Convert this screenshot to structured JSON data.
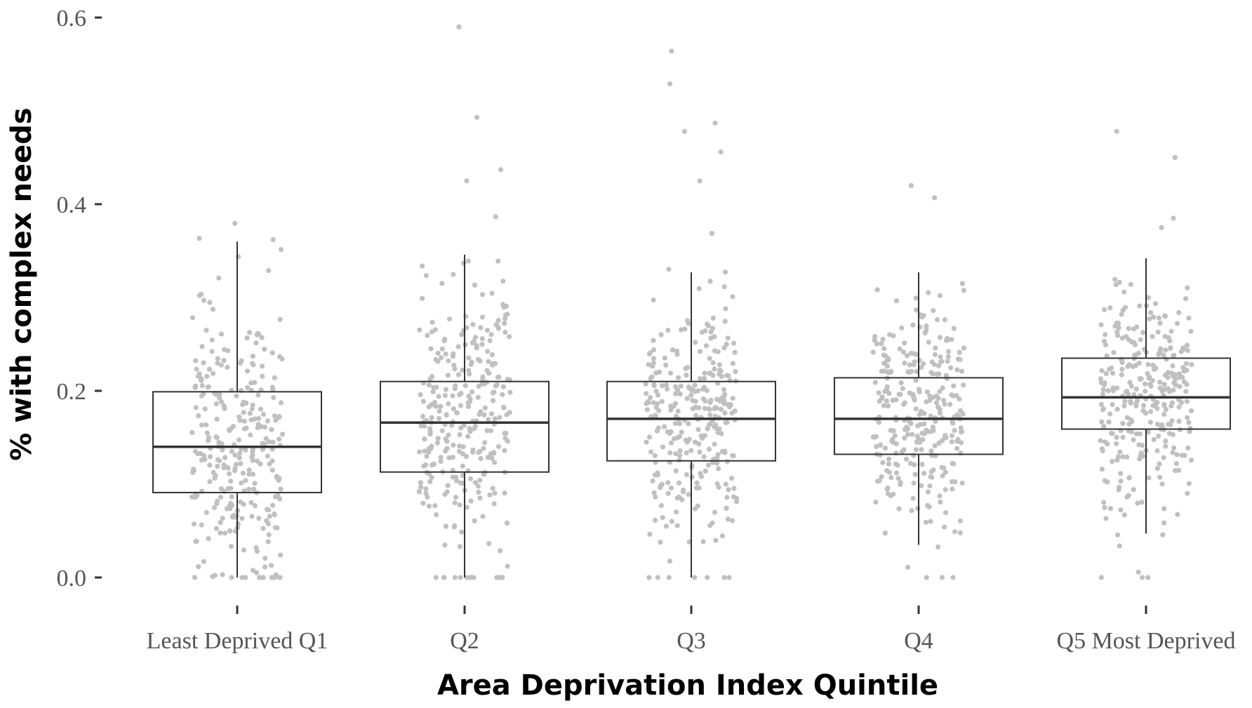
{
  "chart_data": {
    "type": "box",
    "xlabel": "Area Deprivation Index Quintile",
    "ylabel": "% with complex needs",
    "ylim": [
      -0.06,
      0.61
    ],
    "yticks": [
      "0.0",
      "0.2",
      "0.4",
      "0.6"
    ],
    "ytick_values": [
      0,
      0.2,
      0.4,
      0.6
    ],
    "categories": [
      "Least Deprived Q1",
      "Q2",
      "Q3",
      "Q4",
      "Q5 Most Deprived"
    ],
    "boxes": [
      {
        "category": "Least Deprived Q1",
        "min": 0.0,
        "q1": 0.091,
        "median": 0.14,
        "q3": 0.199,
        "max": 0.36
      },
      {
        "category": "Q2",
        "min": 0.0,
        "q1": 0.113,
        "median": 0.166,
        "q3": 0.21,
        "max": 0.346
      },
      {
        "category": "Q3",
        "min": 0.0,
        "q1": 0.125,
        "median": 0.17,
        "q3": 0.21,
        "max": 0.327
      },
      {
        "category": "Q4",
        "min": 0.035,
        "q1": 0.132,
        "median": 0.17,
        "q3": 0.214,
        "max": 0.327
      },
      {
        "category": "Q5 Most Deprived",
        "min": 0.047,
        "q1": 0.159,
        "median": 0.193,
        "q3": 0.235,
        "max": 0.342
      }
    ],
    "outliers": [
      {
        "category": "Q2",
        "values": [
          0.59,
          0.493,
          0.437,
          0.425
        ]
      },
      {
        "category": "Q3",
        "values": [
          0.564,
          0.529,
          0.487,
          0.478,
          0.456,
          0.425
        ]
      },
      {
        "category": "Q4",
        "values": [
          0.407,
          0.42
        ]
      },
      {
        "category": "Q5 Most Deprived",
        "values": [
          0.478,
          0.45,
          0.385,
          0.375
        ]
      }
    ],
    "points_per_category": 300,
    "point_color": "#c0c0c0",
    "box_color": "#333333",
    "grid": false,
    "legend": "none"
  }
}
